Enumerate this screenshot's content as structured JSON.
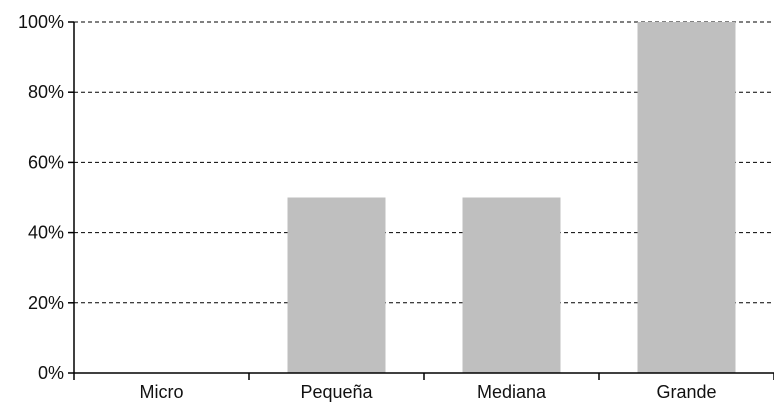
{
  "chart_data": {
    "type": "bar",
    "categories": [
      "Micro",
      "Pequeña",
      "Mediana",
      "Grande"
    ],
    "values": [
      0,
      50,
      50,
      100
    ],
    "title": "",
    "xlabel": "",
    "ylabel": "",
    "ylim": [
      0,
      100
    ],
    "y_ticks": [
      0,
      20,
      40,
      60,
      80,
      100
    ],
    "y_tick_suffix": "%",
    "grid": true,
    "legend": "none",
    "colors": {
      "bar": "#bfbfbf",
      "axis": "#000000",
      "grid": "#000000"
    }
  }
}
